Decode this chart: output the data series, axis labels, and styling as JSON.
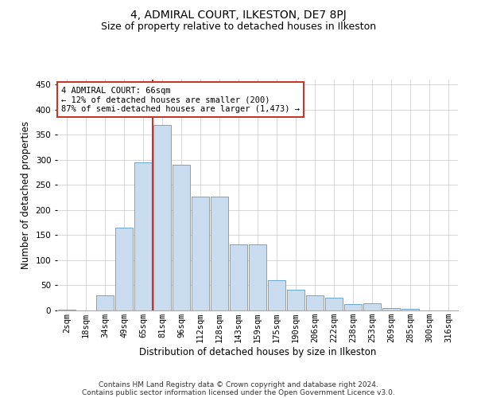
{
  "title": "4, ADMIRAL COURT, ILKESTON, DE7 8PJ",
  "subtitle": "Size of property relative to detached houses in Ilkeston",
  "xlabel": "Distribution of detached houses by size in Ilkeston",
  "ylabel": "Number of detached properties",
  "footer_line1": "Contains HM Land Registry data © Crown copyright and database right 2024.",
  "footer_line2": "Contains public sector information licensed under the Open Government Licence v3.0.",
  "annotation_title": "4 ADMIRAL COURT: 66sqm",
  "annotation_line2": "← 12% of detached houses are smaller (200)",
  "annotation_line3": "87% of semi-detached houses are larger (1,473) →",
  "bar_categories": [
    "2sqm",
    "18sqm",
    "34sqm",
    "49sqm",
    "65sqm",
    "81sqm",
    "96sqm",
    "112sqm",
    "128sqm",
    "143sqm",
    "159sqm",
    "175sqm",
    "190sqm",
    "206sqm",
    "222sqm",
    "238sqm",
    "253sqm",
    "269sqm",
    "285sqm",
    "300sqm",
    "316sqm"
  ],
  "bar_heights": [
    2,
    0,
    30,
    165,
    295,
    370,
    290,
    227,
    227,
    132,
    132,
    60,
    42,
    30,
    25,
    12,
    14,
    5,
    3,
    0,
    0
  ],
  "bar_color": "#c9dcf0",
  "bar_edge_color": "#5b9bd5",
  "vline_color": "#c0392b",
  "vline_x_index": 4,
  "ylim": [
    0,
    460
  ],
  "yticks": [
    0,
    50,
    100,
    150,
    200,
    250,
    300,
    350,
    400,
    450
  ],
  "grid_color": "#c8c8c8",
  "background_color": "#ffffff",
  "annotation_box_color": "#ffffff",
  "annotation_box_edge": "#c0392b",
  "title_fontsize": 10,
  "subtitle_fontsize": 9,
  "xlabel_fontsize": 8.5,
  "ylabel_fontsize": 8.5,
  "tick_fontsize": 7.5,
  "annotation_fontsize": 7.5,
  "footer_fontsize": 6.5
}
